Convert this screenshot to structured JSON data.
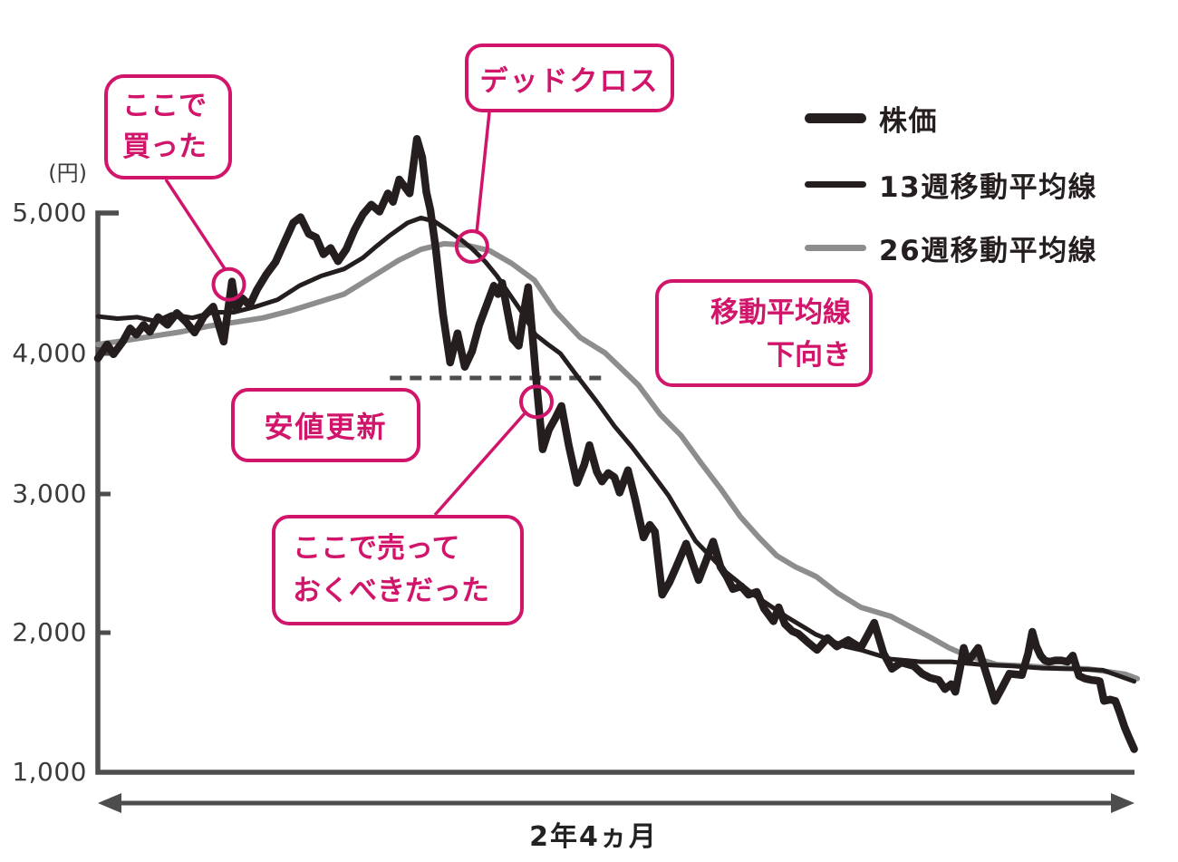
{
  "theme": {
    "accent_pink": "#d0156a",
    "line_black": "#241f1e",
    "line_gray": "#8d8d8d",
    "axis_gray": "#4d4d4d"
  },
  "axis": {
    "y_unit": "(円)",
    "y_ticks": [
      "5,000",
      "4,000",
      "3,000",
      "2,000",
      "1,000"
    ],
    "y_tick_values": [
      5000,
      4000,
      3000,
      2000,
      1000
    ],
    "x_range_label": "2年4ヵ月"
  },
  "legend": {
    "items": [
      {
        "id": "stock",
        "label": "株価"
      },
      {
        "id": "ma13",
        "label": "13週移動平均線"
      },
      {
        "id": "ma26",
        "label": "26週移動平均線"
      }
    ]
  },
  "callouts": {
    "bought": {
      "line1": "ここで",
      "line2": "買った"
    },
    "dead_cross": {
      "text": "デッドクロス"
    },
    "new_low": {
      "text": "安値更新"
    },
    "should_sell": {
      "line1": "ここで売って",
      "line2": "おくべきだった"
    },
    "ma_down": {
      "line1": "移動平均線",
      "line2": "下向き"
    }
  },
  "chart_data": {
    "type": "line",
    "title": "",
    "ylabel": "(円)",
    "xlabel": "2年4ヵ月",
    "ylim": [
      1000,
      5600
    ],
    "y_ticks": [
      1000,
      2000,
      3000,
      4000,
      5000
    ],
    "x_axis": {
      "span_label": "2年4ヵ月",
      "scale": "percent_of_span",
      "range": [
        0,
        100
      ]
    },
    "grid": false,
    "legend_position": "top-right",
    "series": [
      {
        "id": "stock",
        "name": "株価",
        "color": "#241f1e",
        "width": 8.5,
        "points": [
          [
            0,
            3960
          ],
          [
            0.9,
            4060
          ],
          [
            1.5,
            3990
          ],
          [
            2.4,
            4080
          ],
          [
            3.1,
            4175
          ],
          [
            3.7,
            4130
          ],
          [
            4.4,
            4200
          ],
          [
            5,
            4150
          ],
          [
            5.8,
            4255
          ],
          [
            6.7,
            4200
          ],
          [
            7.6,
            4285
          ],
          [
            8.5,
            4220
          ],
          [
            9.3,
            4145
          ],
          [
            10.2,
            4260
          ],
          [
            11.1,
            4330
          ],
          [
            12.1,
            4080
          ],
          [
            12.9,
            4510
          ],
          [
            13.3,
            4310
          ],
          [
            13.9,
            4390
          ],
          [
            14.6,
            4340
          ],
          [
            15.3,
            4450
          ],
          [
            16.2,
            4560
          ],
          [
            17.1,
            4650
          ],
          [
            18,
            4800
          ],
          [
            18.8,
            4930
          ],
          [
            19.5,
            4970
          ],
          [
            20.3,
            4850
          ],
          [
            21,
            4825
          ],
          [
            21.7,
            4705
          ],
          [
            22.4,
            4750
          ],
          [
            23.1,
            4655
          ],
          [
            23.9,
            4740
          ],
          [
            24.7,
            4880
          ],
          [
            25.5,
            4990
          ],
          [
            26.3,
            5060
          ],
          [
            27.1,
            5010
          ],
          [
            27.9,
            5140
          ],
          [
            28.4,
            5080
          ],
          [
            29,
            5240
          ],
          [
            30,
            5140
          ],
          [
            30.7,
            5530
          ],
          [
            31.2,
            5400
          ],
          [
            31.6,
            5150
          ],
          [
            32,
            5020
          ],
          [
            32.5,
            4750
          ],
          [
            33.2,
            4280
          ],
          [
            33.9,
            3930
          ],
          [
            34.6,
            4140
          ],
          [
            35.3,
            3900
          ],
          [
            36,
            4010
          ],
          [
            36.7,
            4200
          ],
          [
            37.4,
            4340
          ],
          [
            38.1,
            4480
          ],
          [
            38.5,
            4420
          ],
          [
            38.9,
            4500
          ],
          [
            39.4,
            4300
          ],
          [
            39.9,
            4100
          ],
          [
            40.5,
            4050
          ],
          [
            41,
            4300
          ],
          [
            41.4,
            4470
          ],
          [
            41.9,
            4050
          ],
          [
            42.2,
            3790
          ],
          [
            42.8,
            3310
          ],
          [
            43.4,
            3450
          ],
          [
            44,
            3530
          ],
          [
            44.6,
            3620
          ],
          [
            45.3,
            3340
          ],
          [
            46.1,
            3070
          ],
          [
            46.8,
            3200
          ],
          [
            47.3,
            3340
          ],
          [
            48,
            3150
          ],
          [
            48.5,
            3080
          ],
          [
            49.1,
            3140
          ],
          [
            49.7,
            3110
          ],
          [
            50.2,
            3000
          ],
          [
            51,
            3160
          ],
          [
            51.7,
            2950
          ],
          [
            52.5,
            2680
          ],
          [
            53.1,
            2770
          ],
          [
            53.6,
            2720
          ],
          [
            54.3,
            2270
          ],
          [
            55,
            2360
          ],
          [
            55.6,
            2460
          ],
          [
            56.6,
            2635
          ],
          [
            57.3,
            2480
          ],
          [
            57.8,
            2375
          ],
          [
            58.5,
            2510
          ],
          [
            59.2,
            2650
          ],
          [
            59.9,
            2470
          ],
          [
            60.5,
            2400
          ],
          [
            61.1,
            2310
          ],
          [
            61.9,
            2330
          ],
          [
            62.6,
            2270
          ],
          [
            63.4,
            2290
          ],
          [
            64.1,
            2170
          ],
          [
            65,
            2080
          ],
          [
            65.5,
            2180
          ],
          [
            66.1,
            2060
          ],
          [
            66.8,
            2010
          ],
          [
            67.4,
            1990
          ],
          [
            68.3,
            1930
          ],
          [
            69.2,
            1875
          ],
          [
            70.2,
            1960
          ],
          [
            71.1,
            1900
          ],
          [
            72.2,
            1945
          ],
          [
            73.4,
            1890
          ],
          [
            74.1,
            1985
          ],
          [
            74.7,
            2070
          ],
          [
            75.6,
            1850
          ],
          [
            76.4,
            1740
          ],
          [
            77.3,
            1785
          ],
          [
            78.5,
            1760
          ],
          [
            79.3,
            1705
          ],
          [
            80.1,
            1675
          ],
          [
            80.9,
            1660
          ],
          [
            81.5,
            1595
          ],
          [
            82.1,
            1630
          ],
          [
            82.5,
            1575
          ],
          [
            83,
            1760
          ],
          [
            83.3,
            1890
          ],
          [
            83.7,
            1790
          ],
          [
            84.1,
            1830
          ],
          [
            84.7,
            1890
          ],
          [
            85.5,
            1700
          ],
          [
            86.3,
            1510
          ],
          [
            87,
            1605
          ],
          [
            87.7,
            1705
          ],
          [
            88.3,
            1700
          ],
          [
            88.9,
            1695
          ],
          [
            89.5,
            1850
          ],
          [
            89.9,
            2005
          ],
          [
            90.3,
            1900
          ],
          [
            90.7,
            1835
          ],
          [
            91.1,
            1800
          ],
          [
            91.5,
            1790
          ],
          [
            92.1,
            1800
          ],
          [
            92.7,
            1800
          ],
          [
            93.3,
            1790
          ],
          [
            93.8,
            1835
          ],
          [
            94.4,
            1690
          ],
          [
            95,
            1670
          ],
          [
            95.6,
            1660
          ],
          [
            96.2,
            1655
          ],
          [
            96.4,
            1650
          ],
          [
            96.8,
            1510
          ],
          [
            97.4,
            1520
          ],
          [
            97.9,
            1510
          ],
          [
            98.3,
            1430
          ],
          [
            98.8,
            1320
          ],
          [
            99.2,
            1250
          ],
          [
            99.7,
            1165
          ]
        ]
      },
      {
        "id": "ma13",
        "name": "13週移動平均線",
        "color": "#241f1e",
        "width": 5,
        "points": [
          [
            0,
            4260
          ],
          [
            1.9,
            4245
          ],
          [
            3.8,
            4255
          ],
          [
            5.6,
            4225
          ],
          [
            7.1,
            4275
          ],
          [
            9.1,
            4250
          ],
          [
            11.1,
            4290
          ],
          [
            13.1,
            4290
          ],
          [
            15.2,
            4330
          ],
          [
            17.3,
            4380
          ],
          [
            19.4,
            4480
          ],
          [
            21.5,
            4550
          ],
          [
            23.7,
            4600
          ],
          [
            25.5,
            4680
          ],
          [
            26.6,
            4750
          ],
          [
            28.1,
            4840
          ],
          [
            29.8,
            4930
          ],
          [
            31.1,
            4965
          ],
          [
            32.4,
            4940
          ],
          [
            33.8,
            4870
          ],
          [
            35.1,
            4800
          ],
          [
            36,
            4745
          ],
          [
            37.3,
            4650
          ],
          [
            38.4,
            4550
          ],
          [
            39.5,
            4430
          ],
          [
            40.8,
            4290
          ],
          [
            42.1,
            4130
          ],
          [
            43.3,
            4060
          ],
          [
            44.5,
            3995
          ],
          [
            46.2,
            3825
          ],
          [
            48,
            3650
          ],
          [
            49.7,
            3475
          ],
          [
            51.4,
            3325
          ],
          [
            53.2,
            3150
          ],
          [
            54.9,
            2980
          ],
          [
            57.5,
            2655
          ],
          [
            60.3,
            2440
          ],
          [
            63.2,
            2265
          ],
          [
            66.2,
            2115
          ],
          [
            69.1,
            1985
          ],
          [
            71.9,
            1900
          ],
          [
            73.4,
            1875
          ],
          [
            76.3,
            1810
          ],
          [
            79.2,
            1790
          ],
          [
            82.1,
            1790
          ],
          [
            85,
            1770
          ],
          [
            88,
            1760
          ],
          [
            90.8,
            1745
          ],
          [
            93.7,
            1740
          ],
          [
            96.7,
            1730
          ],
          [
            99.7,
            1650
          ]
        ]
      },
      {
        "id": "ma26",
        "name": "26週移動平均線",
        "color": "#8d8d8d",
        "width": 6,
        "points": [
          [
            0,
            4060
          ],
          [
            2.8,
            4090
          ],
          [
            5.4,
            4120
          ],
          [
            8,
            4150
          ],
          [
            10.6,
            4190
          ],
          [
            13.3,
            4220
          ],
          [
            15.9,
            4250
          ],
          [
            18.5,
            4300
          ],
          [
            21.1,
            4360
          ],
          [
            23.7,
            4420
          ],
          [
            26.3,
            4540
          ],
          [
            28.9,
            4660
          ],
          [
            31.1,
            4740
          ],
          [
            33.3,
            4780
          ],
          [
            35.5,
            4770
          ],
          [
            37.7,
            4730
          ],
          [
            39.8,
            4640
          ],
          [
            42,
            4520
          ],
          [
            44,
            4300
          ],
          [
            46.4,
            4110
          ],
          [
            48.8,
            4000
          ],
          [
            52,
            3770
          ],
          [
            54.1,
            3560
          ],
          [
            56.1,
            3410
          ],
          [
            58,
            3215
          ],
          [
            59.9,
            3030
          ],
          [
            61.8,
            2830
          ],
          [
            63.6,
            2680
          ],
          [
            65.3,
            2550
          ],
          [
            67.1,
            2470
          ],
          [
            69.1,
            2400
          ],
          [
            71.2,
            2280
          ],
          [
            73.4,
            2180
          ],
          [
            76.3,
            2115
          ],
          [
            78.2,
            2040
          ],
          [
            80.1,
            1965
          ],
          [
            81.9,
            1890
          ],
          [
            83.6,
            1835
          ],
          [
            85.2,
            1800
          ],
          [
            86.5,
            1770
          ],
          [
            89.4,
            1760
          ],
          [
            92.3,
            1745
          ],
          [
            95.2,
            1740
          ],
          [
            97.6,
            1715
          ],
          [
            98.9,
            1700
          ],
          [
            100,
            1670
          ]
        ]
      }
    ],
    "annotations": [
      {
        "id": "bought",
        "label": "ここで買った",
        "marker": {
          "x_pct": 12.6,
          "price": 4490
        }
      },
      {
        "id": "dead_cross",
        "label": "デッドクロス",
        "marker": {
          "x_pct": 36.0,
          "price": 4760
        }
      },
      {
        "id": "new_low",
        "label": "安値更新",
        "dashed_line": {
          "price": 3820,
          "from_x_pct": 28.1,
          "to_x_pct": 48.8
        }
      },
      {
        "id": "should_sell",
        "label": "ここで売っておくべきだった",
        "marker": {
          "x_pct": 42.2,
          "price": 3650
        }
      },
      {
        "id": "ma_down",
        "label": "移動平均線下向き"
      }
    ]
  }
}
